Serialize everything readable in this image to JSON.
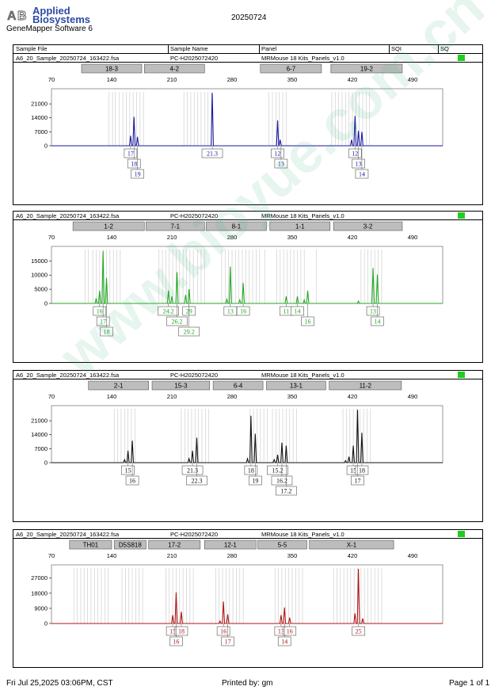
{
  "logo": {
    "line1": "Applied",
    "line2": "Biosystems",
    "mark": "AB"
  },
  "software": "GeneMapper Software 6",
  "report_title": "20250724",
  "columns": [
    "Sample File",
    "Sample Name",
    "Panel",
    "SQI",
    "SQ"
  ],
  "watermark": "www.bioyue.com.cn",
  "footer": {
    "date": "Fri Jul 25,2025 03:06PM, CST",
    "printed": "Printed by: gm",
    "page": "Page 1 of 1"
  },
  "panels": [
    {
      "sample_file": "A6_20_Sample_20250724_163422.fsa",
      "sample_name": "PC-H2025072420",
      "panel": "MRMouse 18 Kits_Panels_v1.0",
      "sq_color": "#22cc22",
      "dye_color": "#1a1aa0",
      "y_ticks": [
        0,
        7000,
        14000,
        21000
      ],
      "y_max": 27000,
      "x_ticks": [
        70,
        140,
        210,
        280,
        350,
        420,
        490
      ],
      "markers": [
        {
          "label": "18-3",
          "start": 105,
          "end": 175
        },
        {
          "label": "4-2",
          "start": 178,
          "end": 248
        },
        {
          "label": "6-7",
          "start": 313,
          "end": 384
        },
        {
          "label": "19-2",
          "start": 395,
          "end": 478
        }
      ],
      "bins": [
        137,
        141,
        144,
        149,
        153,
        157,
        161,
        165,
        169,
        173,
        177,
        224,
        228,
        232,
        236,
        240,
        244,
        248,
        252,
        256,
        323,
        327,
        331,
        335,
        339,
        343,
        396,
        400,
        404,
        408,
        412,
        416,
        420,
        424,
        428,
        432,
        436,
        440
      ],
      "peaks": [
        {
          "x": 166,
          "h": 14500
        },
        {
          "x": 162,
          "h": 5000
        },
        {
          "x": 170,
          "h": 4500
        },
        {
          "x": 257,
          "h": 26500
        },
        {
          "x": 333,
          "h": 12700
        },
        {
          "x": 336,
          "h": 3000
        },
        {
          "x": 423,
          "h": 15000
        },
        {
          "x": 427,
          "h": 7500
        },
        {
          "x": 431,
          "h": 7000
        },
        {
          "x": 419,
          "h": 3000
        }
      ],
      "labels": [
        {
          "text": "17",
          "x": 162,
          "row": 0
        },
        {
          "text": "18",
          "x": 166,
          "row": 1
        },
        {
          "text": "19",
          "x": 170,
          "row": 2
        },
        {
          "text": "21.3",
          "x": 257,
          "row": 0
        },
        {
          "text": "12",
          "x": 333,
          "row": 0
        },
        {
          "text": "13",
          "x": 337,
          "row": 1
        },
        {
          "text": "12",
          "x": 423,
          "row": 0
        },
        {
          "text": "13",
          "x": 427,
          "row": 1
        },
        {
          "text": "14",
          "x": 431,
          "row": 2
        }
      ]
    },
    {
      "sample_file": "A6_20_Sample_20250724_163422.fsa",
      "sample_name": "PC-H2025072420",
      "panel": "MRMouse 18 Kits_Panels_v1.0",
      "sq_color": "#22cc22",
      "dye_color": "#22a822",
      "y_ticks": [
        0,
        5000,
        10000,
        15000
      ],
      "y_max": 19000,
      "x_ticks": [
        70,
        140,
        210,
        280,
        350,
        420,
        490
      ],
      "markers": [
        {
          "label": "1-2",
          "start": 95,
          "end": 178
        },
        {
          "label": "7-1",
          "start": 180,
          "end": 248
        },
        {
          "label": "8-1",
          "start": 250,
          "end": 320
        },
        {
          "label": "1-1",
          "start": 324,
          "end": 394
        },
        {
          "label": "3-2",
          "start": 398,
          "end": 478
        }
      ],
      "bins": [
        109,
        113,
        118,
        122,
        126,
        130,
        134,
        138,
        142,
        146,
        150,
        195,
        199,
        203,
        207,
        211,
        215,
        219,
        223,
        227,
        231,
        235,
        240,
        244,
        248,
        268,
        272,
        276,
        280,
        284,
        288,
        292,
        296,
        300,
        304,
        308,
        312,
        318,
        332,
        336,
        340,
        344,
        348,
        352,
        356,
        360,
        364,
        378,
        430,
        434,
        438,
        442,
        446,
        450,
        454
      ],
      "peaks": [
        {
          "x": 130,
          "h": 18500
        },
        {
          "x": 126,
          "h": 4500
        },
        {
          "x": 134,
          "h": 9000
        },
        {
          "x": 122,
          "h": 1800
        },
        {
          "x": 216,
          "h": 11000
        },
        {
          "x": 206,
          "h": 4500
        },
        {
          "x": 210,
          "h": 2500
        },
        {
          "x": 230,
          "h": 5000
        },
        {
          "x": 226,
          "h": 3000
        },
        {
          "x": 278,
          "h": 13000
        },
        {
          "x": 293,
          "h": 7200
        },
        {
          "x": 274,
          "h": 1500
        },
        {
          "x": 289,
          "h": 1200
        },
        {
          "x": 343,
          "h": 2500
        },
        {
          "x": 356,
          "h": 2500
        },
        {
          "x": 368,
          "h": 4500
        },
        {
          "x": 364,
          "h": 1200
        },
        {
          "x": 444,
          "h": 12500
        },
        {
          "x": 449,
          "h": 10200
        },
        {
          "x": 427,
          "h": 800
        }
      ],
      "labels": [
        {
          "text": "16",
          "x": 126,
          "row": 0
        },
        {
          "text": "17",
          "x": 130,
          "row": 1
        },
        {
          "text": "18",
          "x": 134,
          "row": 2
        },
        {
          "text": "24.2",
          "x": 206,
          "row": 0
        },
        {
          "text": "26.2",
          "x": 216,
          "row": 1
        },
        {
          "text": "29",
          "x": 230,
          "row": 0
        },
        {
          "text": "29.2",
          "x": 230,
          "row": 2
        },
        {
          "text": "13",
          "x": 278,
          "row": 0
        },
        {
          "text": "16",
          "x": 293,
          "row": 0
        },
        {
          "text": "11",
          "x": 343,
          "row": 0
        },
        {
          "text": "14",
          "x": 356,
          "row": 0
        },
        {
          "text": "16",
          "x": 368,
          "row": 1
        },
        {
          "text": "13",
          "x": 444,
          "row": 0
        },
        {
          "text": "14",
          "x": 449,
          "row": 1
        }
      ]
    },
    {
      "sample_file": "A6_20_Sample_20250724_163422.fsa",
      "sample_name": "PC-H2025072420",
      "panel": "MRMouse 18 Kits_Panels_v1.0",
      "sq_color": "#22cc22",
      "dye_color": "#111111",
      "y_ticks": [
        0,
        7000,
        14000,
        21000
      ],
      "y_max": 27000,
      "x_ticks": [
        70,
        140,
        210,
        280,
        350,
        420,
        490
      ],
      "markers": [
        {
          "label": "2-1",
          "start": 113,
          "end": 183
        },
        {
          "label": "15-3",
          "start": 187,
          "end": 254
        },
        {
          "label": "6-4",
          "start": 258,
          "end": 316
        },
        {
          "label": "13-1",
          "start": 320,
          "end": 389
        },
        {
          "label": "11-2",
          "start": 393,
          "end": 477
        }
      ],
      "bins": [
        143,
        147,
        151,
        155,
        159,
        163,
        167,
        221,
        225,
        229,
        233,
        237,
        241,
        245,
        249,
        253,
        301,
        305,
        309,
        313,
        317,
        321,
        327,
        331,
        335,
        339,
        343,
        347,
        351,
        355,
        409,
        413,
        417,
        421,
        425,
        429,
        433,
        437,
        441
      ],
      "peaks": [
        {
          "x": 159,
          "h": 6000
        },
        {
          "x": 164,
          "h": 11000
        },
        {
          "x": 155,
          "h": 1500
        },
        {
          "x": 234,
          "h": 6000
        },
        {
          "x": 239,
          "h": 12500
        },
        {
          "x": 230,
          "h": 2000
        },
        {
          "x": 302,
          "h": 23500
        },
        {
          "x": 307,
          "h": 14500
        },
        {
          "x": 298,
          "h": 2000
        },
        {
          "x": 333,
          "h": 4000
        },
        {
          "x": 338,
          "h": 10000
        },
        {
          "x": 343,
          "h": 8500
        },
        {
          "x": 329,
          "h": 1500
        },
        {
          "x": 421,
          "h": 8500
        },
        {
          "x": 426,
          "h": 26500
        },
        {
          "x": 431,
          "h": 15000
        },
        {
          "x": 416,
          "h": 3000
        },
        {
          "x": 412,
          "h": 1000
        }
      ],
      "labels": [
        {
          "text": "15",
          "x": 159,
          "row": 0
        },
        {
          "text": "16",
          "x": 164,
          "row": 1
        },
        {
          "text": "21.3",
          "x": 234,
          "row": 0
        },
        {
          "text": "22.3",
          "x": 239,
          "row": 1
        },
        {
          "text": "18",
          "x": 302,
          "row": 0
        },
        {
          "text": "19",
          "x": 307,
          "row": 1
        },
        {
          "text": "15.2",
          "x": 333,
          "row": 0
        },
        {
          "text": "16.2",
          "x": 338,
          "row": 1
        },
        {
          "text": "17.2",
          "x": 343,
          "row": 2
        },
        {
          "text": "15",
          "x": 421,
          "row": 0
        },
        {
          "text": "18",
          "x": 431,
          "row": 0
        },
        {
          "text": "17",
          "x": 426,
          "row": 1
        }
      ]
    },
    {
      "sample_file": "A6_20_Sample_20250724_163422.fsa",
      "sample_name": "PC-H2025072420",
      "panel": "MRMouse 18 Kits_Panels_v1.0",
      "sq_color": "#22cc22",
      "dye_color": "#b01515",
      "y_ticks": [
        0,
        9000,
        18000,
        27000
      ],
      "y_max": 33000,
      "x_ticks": [
        70,
        140,
        210,
        280,
        350,
        420,
        490
      ],
      "markers": [
        {
          "label": "TH01",
          "start": 91,
          "end": 140
        },
        {
          "label": "D5S818",
          "start": 143,
          "end": 180
        },
        {
          "label": "17-2",
          "start": 183,
          "end": 243
        },
        {
          "label": "12-1",
          "start": 248,
          "end": 308
        },
        {
          "label": "5-5",
          "start": 310,
          "end": 367
        },
        {
          "label": "X-1",
          "start": 370,
          "end": 468
        }
      ],
      "bins": [
        96,
        100,
        104,
        108,
        112,
        116,
        120,
        124,
        128,
        132,
        136,
        152,
        156,
        160,
        164,
        168,
        172,
        176,
        203,
        207,
        211,
        215,
        219,
        223,
        227,
        231,
        235,
        261,
        265,
        269,
        273,
        277,
        281,
        285,
        289,
        293,
        330,
        334,
        338,
        342,
        346,
        350,
        354,
        358,
        362,
        398,
        402,
        406,
        410,
        414,
        418,
        422,
        426,
        430,
        434,
        438,
        442,
        446,
        450,
        454
      ],
      "peaks": [
        {
          "x": 211,
          "h": 5000
        },
        {
          "x": 215,
          "h": 18500
        },
        {
          "x": 221,
          "h": 7000
        },
        {
          "x": 270,
          "h": 13000
        },
        {
          "x": 275,
          "h": 5500
        },
        {
          "x": 266,
          "h": 1500
        },
        {
          "x": 337,
          "h": 5000
        },
        {
          "x": 341,
          "h": 9500
        },
        {
          "x": 347,
          "h": 3500
        },
        {
          "x": 423,
          "h": 6000
        },
        {
          "x": 427,
          "h": 32500
        },
        {
          "x": 432,
          "h": 3000
        }
      ],
      "labels": [
        {
          "text": "15",
          "x": 211,
          "row": 0
        },
        {
          "text": "18",
          "x": 221,
          "row": 0
        },
        {
          "text": "16",
          "x": 215,
          "row": 1
        },
        {
          "text": "16",
          "x": 270,
          "row": 0
        },
        {
          "text": "17",
          "x": 275,
          "row": 1
        },
        {
          "text": "13",
          "x": 337,
          "row": 0
        },
        {
          "text": "16",
          "x": 347,
          "row": 0
        },
        {
          "text": "14",
          "x": 341,
          "row": 1
        },
        {
          "text": "25",
          "x": 427,
          "row": 0
        }
      ]
    }
  ]
}
